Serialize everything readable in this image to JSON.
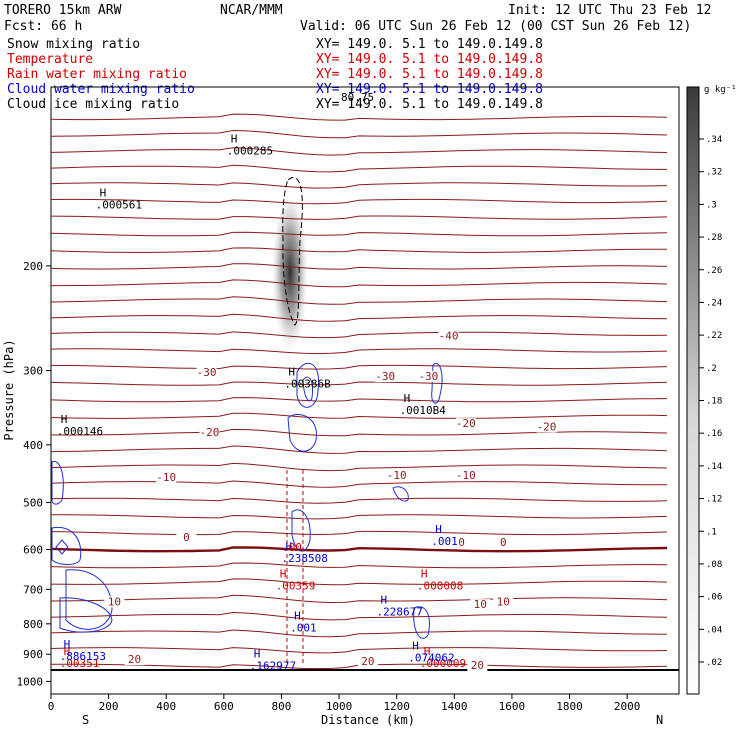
{
  "header": {
    "model": "TORERO  15km ARW",
    "center": "NCAR/MMM",
    "init": "Init: 12 UTC Thu 23 Feb 12",
    "fcst": "Fcst:   66 h",
    "valid": "Valid: 06 UTC Sun 26 Feb 12 (00 CST Sun 26 Feb 12)"
  },
  "fields": [
    {
      "name": "Snow mixing ratio",
      "xy": "XY= 149.0.  5.1 to 149.0.149.8",
      "color": "#000000"
    },
    {
      "name": "Temperature",
      "xy": "XY= 149.0.  5.1 to 149.0.149.8",
      "color": "#cc0000"
    },
    {
      "name": "Rain water mixing ratio",
      "xy": "XY= 149.0.  5.1 to 149.0.149.8",
      "color": "#cc0000"
    },
    {
      "name": "Cloud water mixing ratio",
      "xy": "XY= 149.0.  5.1 to 149.0.149.8",
      "color": "#0000cc"
    },
    {
      "name": "Cloud ice mixing ratio",
      "xy": "XY= 149.0.  5.1 to 149.0.149.8",
      "color": "#000000"
    }
  ],
  "chart_data": {
    "type": "cross-section contour",
    "xlabel": "Distance (km)",
    "ylabel": "Pressure (hPa)",
    "xlim": [
      0,
      2180
    ],
    "ylim": [
      1050,
      100
    ],
    "y_scale": "log",
    "x_ticks": [
      0,
      200,
      400,
      600,
      800,
      1000,
      1200,
      1400,
      1600,
      1800,
      2000
    ],
    "y_ticks": [
      200,
      300,
      400,
      500,
      600,
      700,
      800,
      900,
      1000
    ],
    "endpoints": {
      "left": "S",
      "right": "N"
    },
    "colorbar": {
      "unit": "g kg⁻¹",
      "ticks": [
        ".02",
        ".04",
        ".06",
        ".08",
        ".1",
        ".12",
        ".14",
        ".16",
        ".18",
        ".2",
        ".22",
        ".24",
        ".26",
        ".28",
        ".3",
        ".32",
        ".34"
      ]
    },
    "temperature_contours": {
      "color": "#8b1a1a",
      "interval": 2,
      "labeled": [
        {
          "text": "-40",
          "x": 1380,
          "p": 265
        },
        {
          "text": "-30",
          "x": 540,
          "p": 305
        },
        {
          "text": "-30",
          "x": 1160,
          "p": 310
        },
        {
          "text": "-30",
          "x": 1310,
          "p": 310
        },
        {
          "text": "-20",
          "x": 550,
          "p": 385
        },
        {
          "text": "-20",
          "x": 1440,
          "p": 372
        },
        {
          "text": "-20",
          "x": 1720,
          "p": 377
        },
        {
          "text": "-10",
          "x": 400,
          "p": 458
        },
        {
          "text": "-10",
          "x": 1200,
          "p": 455
        },
        {
          "text": "-10",
          "x": 1440,
          "p": 455
        },
        {
          "text": "0",
          "x": 470,
          "p": 578
        },
        {
          "text": "0",
          "x": 1425,
          "p": 590
        },
        {
          "text": "0",
          "x": 1570,
          "p": 590
        },
        {
          "text": "10",
          "x": 220,
          "p": 742
        },
        {
          "text": "10",
          "x": 1490,
          "p": 750
        },
        {
          "text": "10",
          "x": 1570,
          "p": 742
        },
        {
          "text": "20",
          "x": 290,
          "p": 928
        },
        {
          "text": "20",
          "x": 1100,
          "p": 935
        },
        {
          "text": "20",
          "x": 1480,
          "p": 950
        }
      ]
    },
    "snow_max": [
      {
        "text": ".000285",
        "x": 610,
        "p": 130
      },
      {
        "text": ".000561",
        "x": 155,
        "p": 160
      },
      {
        "text": ".00386B",
        "x": 810,
        "p": 320
      },
      {
        "text": ".0010B4",
        "x": 1210,
        "p": 355
      },
      {
        "text": ".000146",
        "x": 20,
        "p": 385
      }
    ],
    "rain_max": [
      {
        "text": ".00359",
        "x": 780,
        "p": 700
      },
      {
        "text": ".000008",
        "x": 1270,
        "p": 700
      },
      {
        "text": ".00351",
        "x": 30,
        "p": 945
      },
      {
        "text": ".000009",
        "x": 1280,
        "p": 945
      }
    ],
    "cloud_water_max": [
      {
        "text": ".001",
        "x": 1320,
        "p": 590
      },
      {
        "text": ".238508",
        "x": 800,
        "p": 630
      },
      {
        "text": ".228677",
        "x": 1130,
        "p": 775
      },
      {
        "text": ".001",
        "x": 830,
        "p": 825
      },
      {
        "text": ".886153",
        "x": 30,
        "p": 920
      },
      {
        "text": ".074062",
        "x": 1240,
        "p": 925
      },
      {
        "text": ".162977",
        "x": 690,
        "p": 955
      }
    ],
    "annotations": {
      "overlap_text": "80.75",
      "partial_label": ".00"
    }
  }
}
